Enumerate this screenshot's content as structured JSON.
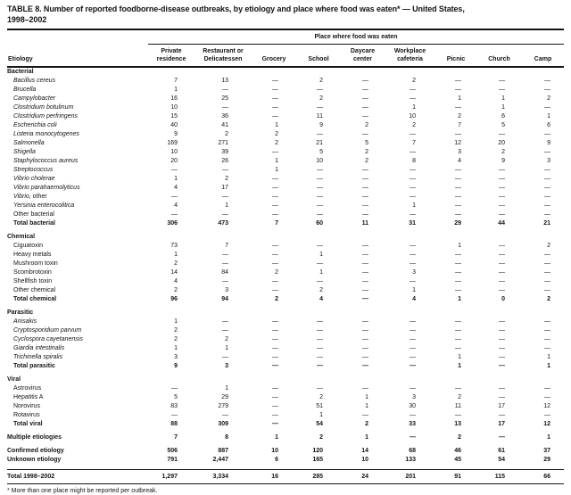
{
  "title": {
    "line1": "TABLE 8. Number of reported foodborne-disease outbreaks, by etiology and place where food was eaten* — United States,",
    "line2": "1998–2002"
  },
  "footnote": "* More than one place might be reported per outbreak.",
  "table": {
    "span_header": "Place where food was eaten",
    "etiology_header": "Etiology",
    "columns": [
      "Private\nresidence",
      "Restaurant or\nDelicatessen",
      "Grocery",
      "School",
      "Daycare\ncenter",
      "Workplace\ncafeteria",
      "Picnic",
      "Church",
      "Camp"
    ],
    "rows": [
      {
        "kind": "section",
        "p": "Bacterial"
      },
      {
        "kind": "data",
        "ind": true,
        "i": "Bacillus cereus",
        "v": [
          "7",
          "13",
          "—",
          "2",
          "—",
          "2",
          "—",
          "—",
          "—"
        ]
      },
      {
        "kind": "data",
        "ind": true,
        "i": "Brucella",
        "v": [
          "1",
          "—",
          "—",
          "—",
          "—",
          "—",
          "—",
          "—",
          "—"
        ]
      },
      {
        "kind": "data",
        "ind": true,
        "i": "Campylobacter",
        "v": [
          "16",
          "25",
          "—",
          "2",
          "—",
          "—",
          "1",
          "1",
          "2"
        ]
      },
      {
        "kind": "data",
        "ind": true,
        "i": "Clostridium botulinum",
        "v": [
          "10",
          "—",
          "—",
          "—",
          "—",
          "1",
          "—",
          "1",
          "—"
        ]
      },
      {
        "kind": "data",
        "ind": true,
        "i": "Clostridium perfringens",
        "v": [
          "15",
          "36",
          "—",
          "11",
          "—",
          "10",
          "2",
          "6",
          "1"
        ]
      },
      {
        "kind": "data",
        "ind": true,
        "i": "Escherichia coli",
        "v": [
          "40",
          "41",
          "1",
          "9",
          "2",
          "2",
          "7",
          "5",
          "6"
        ]
      },
      {
        "kind": "data",
        "ind": true,
        "i": "Listeria monocytogenes",
        "v": [
          "9",
          "2",
          "2",
          "—",
          "—",
          "—",
          "—",
          "—",
          "—"
        ]
      },
      {
        "kind": "data",
        "ind": true,
        "i": "Salmonella",
        "v": [
          "169",
          "271",
          "2",
          "21",
          "5",
          "7",
          "12",
          "20",
          "9"
        ]
      },
      {
        "kind": "data",
        "ind": true,
        "i": "Shigella",
        "v": [
          "10",
          "39",
          "—",
          "5",
          "2",
          "—",
          "3",
          "2",
          "—"
        ]
      },
      {
        "kind": "data",
        "ind": true,
        "i": "Staphylococcus aureus",
        "v": [
          "20",
          "26",
          "1",
          "10",
          "2",
          "8",
          "4",
          "9",
          "3"
        ]
      },
      {
        "kind": "data",
        "ind": true,
        "i": "Streptococcus",
        "v": [
          "—",
          "—",
          "1",
          "—",
          "—",
          "—",
          "—",
          "—",
          "—"
        ]
      },
      {
        "kind": "data",
        "ind": true,
        "i": "Vibrio cholerae",
        "v": [
          "1",
          "2",
          "—",
          "—",
          "—",
          "—",
          "—",
          "—",
          "—"
        ]
      },
      {
        "kind": "data",
        "ind": true,
        "i": "Vibrio parahaemolyticus",
        "v": [
          "4",
          "17",
          "—",
          "—",
          "—",
          "—",
          "—",
          "—",
          "—"
        ]
      },
      {
        "kind": "data",
        "ind": true,
        "i": "Vibrio,",
        "p": " other",
        "v": [
          "—",
          "—",
          "—",
          "—",
          "—",
          "—",
          "—",
          "—",
          "—"
        ]
      },
      {
        "kind": "data",
        "ind": true,
        "i": "Yersinia enterocolitica",
        "v": [
          "4",
          "1",
          "—",
          "—",
          "—",
          "1",
          "—",
          "—",
          "—"
        ]
      },
      {
        "kind": "data",
        "ind": true,
        "p": "Other bacterial",
        "v": [
          "—",
          "—",
          "—",
          "—",
          "—",
          "—",
          "—",
          "—",
          "—"
        ]
      },
      {
        "kind": "total",
        "ind": true,
        "p": "Total bacterial",
        "v": [
          "306",
          "473",
          "7",
          "60",
          "11",
          "31",
          "29",
          "44",
          "21"
        ]
      },
      {
        "kind": "spacer"
      },
      {
        "kind": "section",
        "p": "Chemical"
      },
      {
        "kind": "data",
        "ind": true,
        "p": "Ciguatoxin",
        "v": [
          "73",
          "7",
          "—",
          "—",
          "—",
          "—",
          "1",
          "—",
          "2"
        ]
      },
      {
        "kind": "data",
        "ind": true,
        "p": "Heavy metals",
        "v": [
          "1",
          "—",
          "—",
          "1",
          "—",
          "—",
          "—",
          "—",
          "—"
        ]
      },
      {
        "kind": "data",
        "ind": true,
        "p": "Mushroom toxin",
        "v": [
          "2",
          "—",
          "—",
          "—",
          "—",
          "—",
          "—",
          "—",
          "—"
        ]
      },
      {
        "kind": "data",
        "ind": true,
        "p": "Scombrotoxin",
        "v": [
          "14",
          "84",
          "2",
          "1",
          "—",
          "3",
          "—",
          "—",
          "—"
        ]
      },
      {
        "kind": "data",
        "ind": true,
        "p": "Shellfish toxin",
        "v": [
          "4",
          "—",
          "—",
          "—",
          "—",
          "—",
          "—",
          "—",
          "—"
        ]
      },
      {
        "kind": "data",
        "ind": true,
        "p": "Other chemical",
        "v": [
          "2",
          "3",
          "—",
          "2",
          "—",
          "1",
          "—",
          "—",
          "—"
        ]
      },
      {
        "kind": "total",
        "ind": true,
        "p": "Total chemical",
        "v": [
          "96",
          "94",
          "2",
          "4",
          "—",
          "4",
          "1",
          "0",
          "2"
        ]
      },
      {
        "kind": "spacer"
      },
      {
        "kind": "section",
        "p": "Parasitic"
      },
      {
        "kind": "data",
        "ind": true,
        "i": "Anisakis",
        "v": [
          "1",
          "—",
          "—",
          "—",
          "—",
          "—",
          "—",
          "—",
          "—"
        ]
      },
      {
        "kind": "data",
        "ind": true,
        "i": "Cryptosporidium parvum",
        "v": [
          "2",
          "—",
          "—",
          "—",
          "—",
          "—",
          "—",
          "—",
          "—"
        ]
      },
      {
        "kind": "data",
        "ind": true,
        "i": "Cyclospora cayetanensis",
        "v": [
          "2",
          "2",
          "—",
          "—",
          "—",
          "—",
          "—",
          "—",
          "—"
        ]
      },
      {
        "kind": "data",
        "ind": true,
        "i": "Giardia intestinalis",
        "v": [
          "1",
          "1",
          "—",
          "—",
          "—",
          "—",
          "—",
          "—",
          "—"
        ]
      },
      {
        "kind": "data",
        "ind": true,
        "i": "Trichinella spiralis",
        "v": [
          "3",
          "—",
          "—",
          "—",
          "—",
          "—",
          "1",
          "—",
          "1"
        ]
      },
      {
        "kind": "total",
        "ind": true,
        "p": "Total parasitic",
        "v": [
          "9",
          "3",
          "—",
          "—",
          "—",
          "—",
          "1",
          "—",
          "1"
        ]
      },
      {
        "kind": "spacer"
      },
      {
        "kind": "section",
        "p": "Viral"
      },
      {
        "kind": "data",
        "ind": true,
        "p": "Astrovirus",
        "v": [
          "—",
          "1",
          "—",
          "—",
          "—",
          "—",
          "—",
          "—",
          "—"
        ]
      },
      {
        "kind": "data",
        "ind": true,
        "p": "Hepatitis A",
        "v": [
          "5",
          "29",
          "—",
          "2",
          "1",
          "3",
          "2",
          "—",
          "—"
        ]
      },
      {
        "kind": "data",
        "ind": true,
        "p": "Norovirus",
        "v": [
          "83",
          "279",
          "—",
          "51",
          "1",
          "30",
          "11",
          "17",
          "12"
        ]
      },
      {
        "kind": "data",
        "ind": true,
        "p": "Rotavirus",
        "v": [
          "—",
          "—",
          "—",
          "1",
          "—",
          "—",
          "—",
          "—",
          "—"
        ]
      },
      {
        "kind": "total",
        "ind": true,
        "p": "Total viral",
        "v": [
          "88",
          "309",
          "—",
          "54",
          "2",
          "33",
          "13",
          "17",
          "12"
        ]
      },
      {
        "kind": "spacer"
      },
      {
        "kind": "flat",
        "p": "Multiple etiologies",
        "v": [
          "7",
          "8",
          "1",
          "2",
          "1",
          "—",
          "2",
          "—",
          "1"
        ]
      },
      {
        "kind": "spacer"
      },
      {
        "kind": "flat",
        "p": "Confirmed etiology",
        "v": [
          "506",
          "887",
          "10",
          "120",
          "14",
          "68",
          "46",
          "61",
          "37"
        ]
      },
      {
        "kind": "flat",
        "p": "Unknown etiology",
        "v": [
          "791",
          "2,447",
          "6",
          "165",
          "10",
          "133",
          "45",
          "54",
          "29"
        ]
      },
      {
        "kind": "spacer"
      },
      {
        "kind": "grand",
        "p": "Total 1998–2002",
        "v": [
          "1,297",
          "3,334",
          "16",
          "285",
          "24",
          "201",
          "91",
          "115",
          "66"
        ]
      }
    ]
  }
}
